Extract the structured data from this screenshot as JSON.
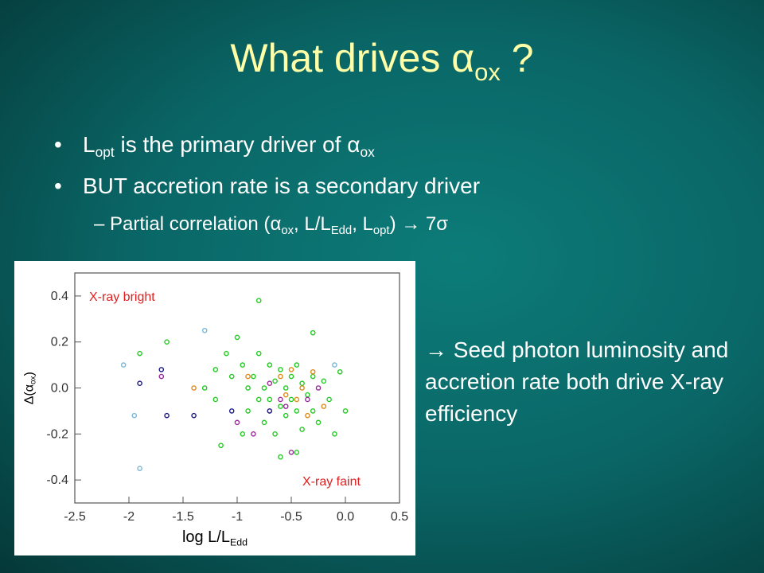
{
  "title": [
    {
      "text": "What drives "
    },
    {
      "text": "α"
    },
    {
      "sub": "ox"
    },
    {
      "text": " ?"
    }
  ],
  "bullets": [
    [
      {
        "text": "L"
      },
      {
        "sub": "opt"
      },
      {
        "text": " is the primary driver of "
      },
      {
        "text": "α"
      },
      {
        "sub": "ox"
      }
    ],
    [
      {
        "text": "BUT accretion rate is a secondary driver"
      }
    ]
  ],
  "sub_bullet": [
    {
      "text": "Partial correlation ("
    },
    {
      "text": "α"
    },
    {
      "sub": "ox"
    },
    {
      "text": ", L/L"
    },
    {
      "sub": "Edd"
    },
    {
      "text": ", L"
    },
    {
      "sub": "opt"
    },
    {
      "text": ") → 7σ"
    }
  ],
  "note": [
    {
      "text": "→ Seed photon luminosity and accretion rate both drive X-ray efficiency"
    }
  ],
  "chart_data": {
    "type": "scatter",
    "xlabel": [
      {
        "text": "log L/L"
      },
      {
        "sub": "Edd"
      }
    ],
    "ylabel": [
      {
        "text": "Δ(α"
      },
      {
        "sub": "ox"
      },
      {
        "text": ")"
      }
    ],
    "annotations": [
      "X-ray bright",
      "X-ray faint"
    ],
    "xlim": [
      -2.5,
      0.5
    ],
    "ylim": [
      -0.5,
      0.5
    ],
    "xticks": [
      -2.5,
      -2,
      -1.5,
      -1,
      -0.5,
      {
        "value": 0,
        "label": "0.0"
      },
      0.5
    ],
    "yticks": [
      0.4,
      0.2,
      {
        "value": 0,
        "label": "0.0"
      },
      -0.2,
      -0.4
    ],
    "series": [
      {
        "color": "#22cc22",
        "x": [
          -1.9,
          -1.65,
          -1.3,
          -1.2,
          -1.1,
          -1.05,
          -1.0,
          -0.95,
          -0.9,
          -0.9,
          -0.85,
          -0.8,
          -0.8,
          -0.75,
          -0.75,
          -0.7,
          -0.7,
          -0.65,
          -0.65,
          -0.6,
          -0.6,
          -0.55,
          -0.55,
          -0.5,
          -0.5,
          -0.45,
          -0.45,
          -0.4,
          -0.4,
          -0.35,
          -0.3,
          -0.3,
          -0.25,
          -0.2,
          -0.15,
          -0.1,
          -0.05,
          0.0,
          -0.8,
          -0.3,
          -1.15,
          -0.6,
          -0.45,
          -1.2,
          -0.95
        ],
        "values": [
          0.15,
          0.2,
          0.0,
          -0.05,
          0.15,
          0.05,
          0.22,
          0.1,
          0.0,
          -0.1,
          0.05,
          0.15,
          -0.05,
          0.0,
          -0.15,
          0.1,
          -0.05,
          0.03,
          -0.2,
          0.08,
          -0.08,
          0.0,
          -0.12,
          0.05,
          -0.05,
          -0.1,
          0.1,
          0.02,
          -0.18,
          -0.03,
          0.05,
          -0.1,
          -0.15,
          0.03,
          -0.05,
          -0.2,
          0.07,
          -0.1,
          0.38,
          0.24,
          -0.25,
          -0.3,
          -0.28,
          0.08,
          -0.2
        ]
      },
      {
        "color": "#e08a1a",
        "x": [
          -1.4,
          -0.7,
          -0.6,
          -0.55,
          -0.5,
          -0.45,
          -0.4,
          -0.35,
          -0.3,
          -0.9,
          -0.2
        ],
        "values": [
          0.0,
          -0.1,
          0.05,
          -0.03,
          0.08,
          -0.05,
          0.0,
          -0.12,
          0.07,
          0.05,
          -0.08
        ]
      },
      {
        "color": "#9a2a9a",
        "x": [
          -1.7,
          -1.0,
          -0.85,
          -0.7,
          -0.55,
          -0.5,
          -0.35,
          -0.25,
          -0.6
        ],
        "values": [
          0.05,
          -0.15,
          -0.2,
          0.02,
          -0.08,
          -0.28,
          -0.05,
          0.0,
          -0.05
        ]
      },
      {
        "color": "#1a1a8a",
        "x": [
          -1.9,
          -1.65,
          -1.4,
          -1.7,
          -1.05,
          -0.7
        ],
        "values": [
          0.02,
          -0.12,
          -0.12,
          0.08,
          -0.1,
          -0.1
        ]
      },
      {
        "color": "#7ab8d8",
        "x": [
          -2.05,
          -1.9,
          -1.95,
          -1.3,
          -0.1
        ],
        "values": [
          0.1,
          -0.35,
          -0.12,
          0.25,
          0.1
        ]
      }
    ]
  }
}
